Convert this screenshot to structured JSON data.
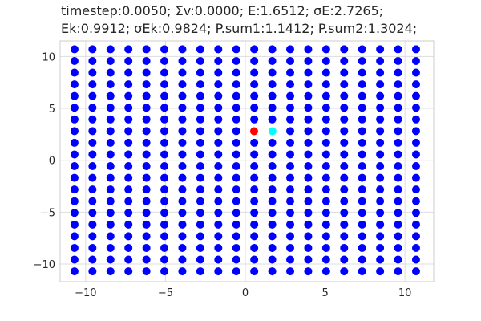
{
  "chart_data": {
    "type": "scatter",
    "title_lines": [
      "timestep:0.0050; Σv:0.0000; E:1.6512; σE:2.7265;",
      "Ek:0.9912; σEk:0.9824; P.sum1:1.1412; P.sum2:1.3024;"
    ],
    "xlabel": "",
    "ylabel": "",
    "xlim": [
      -11.6,
      11.8
    ],
    "ylim": [
      -11.7,
      11.5
    ],
    "x_ticks": [
      -10,
      -5,
      0,
      5,
      10
    ],
    "y_ticks": [
      -10,
      -5,
      0,
      5,
      10
    ],
    "x_tick_labels": [
      "−10",
      "−5",
      "0",
      "5",
      "10"
    ],
    "y_tick_labels": [
      "−10",
      "−5",
      "0",
      "5",
      "10"
    ],
    "grid": true,
    "lattice": {
      "x_start": -10.7,
      "x_step": 1.126,
      "count_x": 20,
      "y_start": -10.7,
      "y_step": 1.126,
      "count_y": 20,
      "color": "#0000ff"
    },
    "highlight_points": [
      {
        "name": "red-particle",
        "x": 0.55,
        "y": 2.8,
        "color": "#ff0000"
      },
      {
        "name": "cyan-particle",
        "x": 1.7,
        "y": 2.8,
        "color": "#00ffff"
      }
    ],
    "excluded_lattice_points": [
      {
        "x": 0.56,
        "y": 2.81
      },
      {
        "x": 1.69,
        "y": 2.81
      }
    ]
  }
}
